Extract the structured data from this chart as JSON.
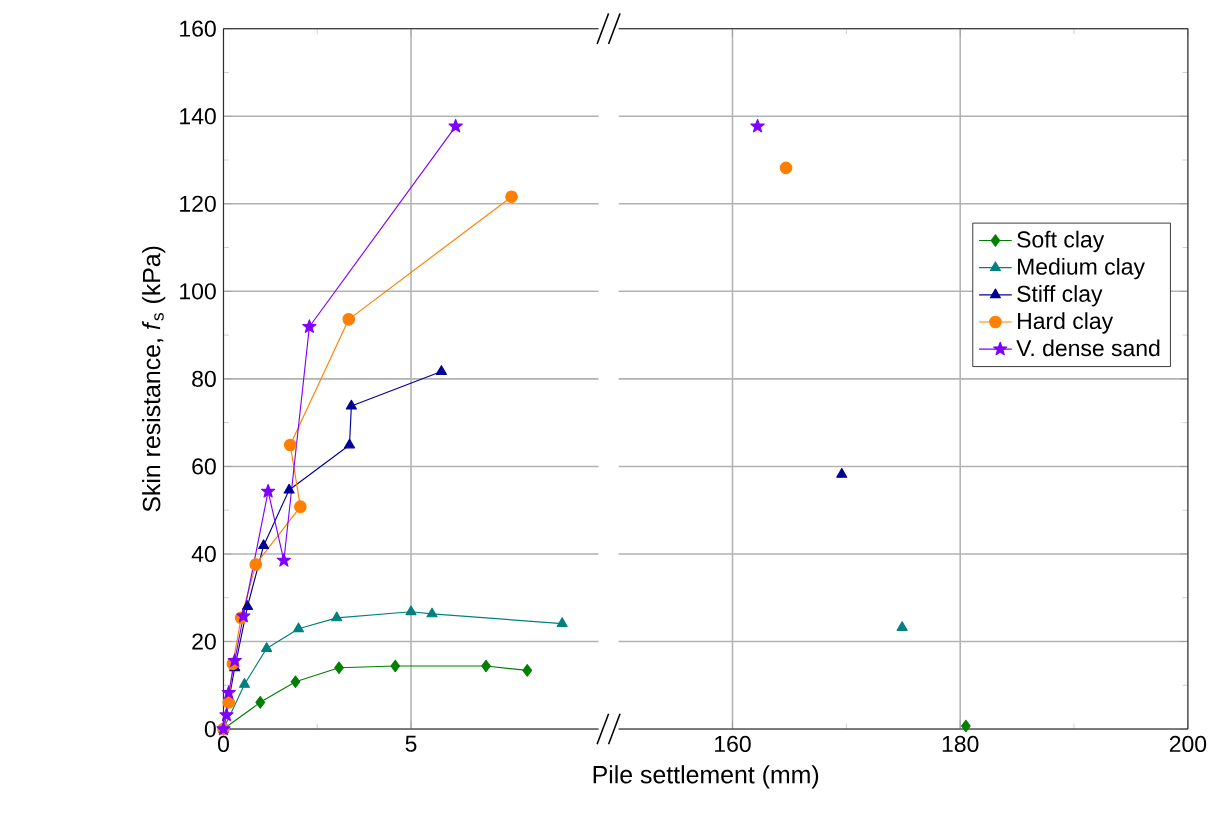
{
  "chart_data": [
    {
      "type": "line",
      "ylabel": "Skin resistance, *f*$_{s}$ (kPa)",
      "xlim": [
        0,
        10
      ],
      "xticks": [
        0,
        5
      ],
      "ylim": [
        0,
        160
      ],
      "yticks": [
        0,
        20,
        40,
        60,
        80,
        100,
        120,
        140,
        160
      ],
      "grid": true,
      "series": [
        {
          "color": "#008000",
          "marker": "diamond",
          "x": [
            0,
            0.98,
            1.92,
            3.08,
            4.58,
            7.0,
            8.1
          ],
          "values": [
            0,
            6.1,
            10.8,
            14.0,
            14.4,
            14.4,
            13.4
          ]
        },
        {
          "color": "#008080",
          "marker": "triangle",
          "x": [
            0,
            0.56,
            1.15,
            2.0,
            3.02,
            5.0,
            5.56,
            9.03
          ],
          "values": [
            0,
            10.2,
            18.4,
            22.9,
            25.4,
            26.8,
            26.3,
            24.1
          ]
        },
        {
          "color": "#000099",
          "marker": "triangle",
          "x": [
            0,
            0.3,
            0.64,
            1.07,
            1.75,
            3.36,
            3.41,
            5.81
          ],
          "values": [
            0,
            14,
            28,
            41.9,
            54.6,
            64.9,
            73.8,
            81.7
          ]
        },
        {
          "color": "#ff8000",
          "marker": "circle",
          "x": [
            0,
            0.14,
            0.25,
            0.47,
            0.86,
            2.05,
            1.78,
            3.34,
            7.68
          ],
          "values": [
            0,
            6.1,
            14.9,
            25.4,
            37.6,
            50.8,
            64.9,
            93.6,
            121.6
          ]
        },
        {
          "color": "#8000ff",
          "marker": "star",
          "x": [
            0,
            0.08,
            0.14,
            0.3,
            0.53,
            1.19,
            1.61,
            2.29,
            6.19
          ],
          "values": [
            0,
            3.2,
            8.3,
            15.6,
            25.8,
            54.3,
            38.5,
            91.9,
            137.7
          ]
        }
      ]
    },
    {
      "type": "line",
      "xlabel": "Pile settlement (mm)",
      "xlim": [
        150,
        200
      ],
      "xticks": [
        160,
        180,
        200
      ],
      "ylim": [
        0,
        160
      ],
      "yticks": [
        0,
        20,
        40,
        60,
        80,
        100,
        120,
        140,
        160
      ],
      "grid": true,
      "tick_labels": "x",
      "legend": "right",
      "series": [
        {
          "name": "Soft clay",
          "color": "#008000",
          "marker": "diamond",
          "x": [
            180.5
          ],
          "values": [
            0.7
          ]
        },
        {
          "name": "Medium clay",
          "color": "#008080",
          "marker": "triangle",
          "x": [
            174.9
          ],
          "values": [
            23.2
          ]
        },
        {
          "name": "Stiff clay",
          "color": "#000099",
          "marker": "triangle",
          "x": [
            169.6
          ],
          "values": [
            58.2
          ]
        },
        {
          "name": "Hard clay",
          "color": "#ff8000",
          "marker": "circle",
          "x": [
            164.7
          ],
          "values": [
            128.2
          ]
        },
        {
          "name": "V. dense sand",
          "color": "#8000ff",
          "marker": "star",
          "x": [
            162.2
          ],
          "values": [
            137.7
          ]
        }
      ]
    }
  ]
}
